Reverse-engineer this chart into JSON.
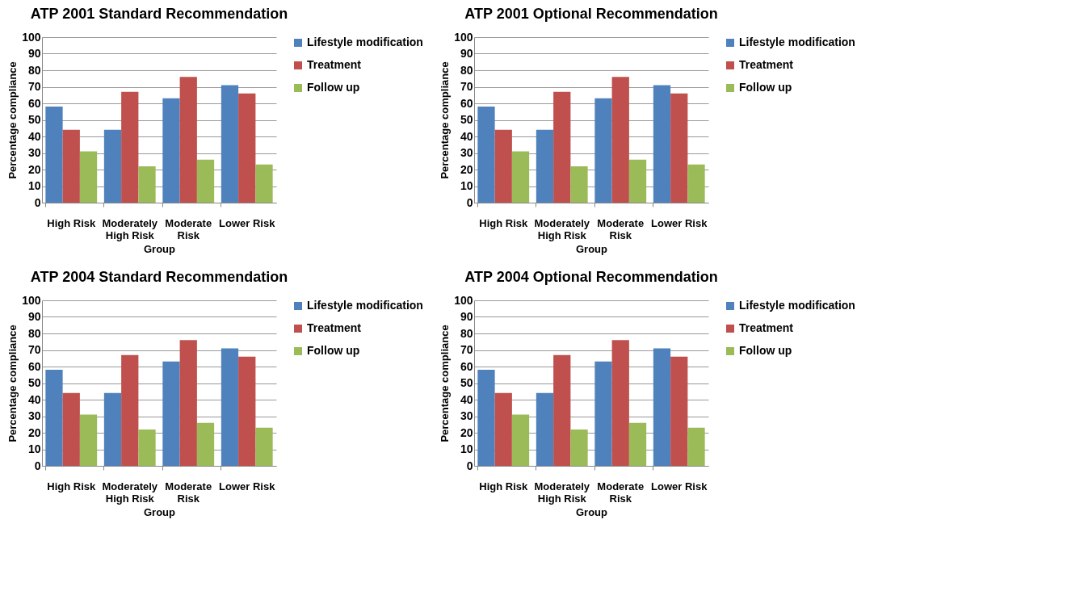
{
  "chart_data": [
    {
      "type": "bar",
      "title": "ATP 2001 Standard Recommendation",
      "xlabel": "Group",
      "ylabel": "Percentage compliance",
      "categories": [
        "High Risk",
        "Moderately High Risk",
        "Moderate Risk",
        "Lower Risk"
      ],
      "series": [
        {
          "name": "Lifestyle modification",
          "color": "#4f81bd",
          "values": [
            58,
            44,
            63,
            71
          ]
        },
        {
          "name": "Treatment",
          "color": "#c0504d",
          "values": [
            44,
            67,
            76,
            66
          ]
        },
        {
          "name": "Follow up",
          "color": "#9bbb59",
          "values": [
            31,
            22,
            26,
            23
          ]
        }
      ],
      "ylim": [
        0,
        100
      ],
      "yticks": [
        0,
        10,
        20,
        30,
        40,
        50,
        60,
        70,
        80,
        90,
        100
      ],
      "grid": "y",
      "legend": "right"
    },
    {
      "type": "bar",
      "title": "ATP 2001 Optional Recommendation",
      "xlabel": "Group",
      "ylabel": "Percentage compliance",
      "categories": [
        "High Risk",
        "Moderately High Risk",
        "Moderate Risk",
        "Lower Risk"
      ],
      "series": [
        {
          "name": "Lifestyle modification",
          "color": "#4f81bd",
          "values": [
            58,
            44,
            63,
            71
          ]
        },
        {
          "name": "Treatment",
          "color": "#c0504d",
          "values": [
            44,
            67,
            76,
            66
          ]
        },
        {
          "name": "Follow up",
          "color": "#9bbb59",
          "values": [
            31,
            22,
            26,
            23
          ]
        }
      ],
      "ylim": [
        0,
        100
      ],
      "yticks": [
        0,
        10,
        20,
        30,
        40,
        50,
        60,
        70,
        80,
        90,
        100
      ],
      "grid": "y",
      "legend": "right"
    },
    {
      "type": "bar",
      "title": "ATP 2004 Standard Recommendation",
      "xlabel": "Group",
      "ylabel": "Percentage compliance",
      "categories": [
        "High Risk",
        "Moderately High Risk",
        "Moderate Risk",
        "Lower Risk"
      ],
      "series": [
        {
          "name": "Lifestyle modification",
          "color": "#4f81bd",
          "values": [
            58,
            44,
            63,
            71
          ]
        },
        {
          "name": "Treatment",
          "color": "#c0504d",
          "values": [
            44,
            67,
            76,
            66
          ]
        },
        {
          "name": "Follow up",
          "color": "#9bbb59",
          "values": [
            31,
            22,
            26,
            23
          ]
        }
      ],
      "ylim": [
        0,
        100
      ],
      "yticks": [
        0,
        10,
        20,
        30,
        40,
        50,
        60,
        70,
        80,
        90,
        100
      ],
      "grid": "y",
      "legend": "right"
    },
    {
      "type": "bar",
      "title": "ATP 2004 Optional Recommendation",
      "xlabel": "Group",
      "ylabel": "Percentage compliance",
      "categories": [
        "High Risk",
        "Moderately High Risk",
        "Moderate Risk",
        "Lower Risk"
      ],
      "series": [
        {
          "name": "Lifestyle modification",
          "color": "#4f81bd",
          "values": [
            58,
            44,
            63,
            71
          ]
        },
        {
          "name": "Treatment",
          "color": "#c0504d",
          "values": [
            44,
            67,
            76,
            66
          ]
        },
        {
          "name": "Follow up",
          "color": "#9bbb59",
          "values": [
            31,
            22,
            26,
            23
          ]
        }
      ],
      "ylim": [
        0,
        100
      ],
      "yticks": [
        0,
        10,
        20,
        30,
        40,
        50,
        60,
        70,
        80,
        90,
        100
      ],
      "grid": "y",
      "legend": "right"
    }
  ]
}
